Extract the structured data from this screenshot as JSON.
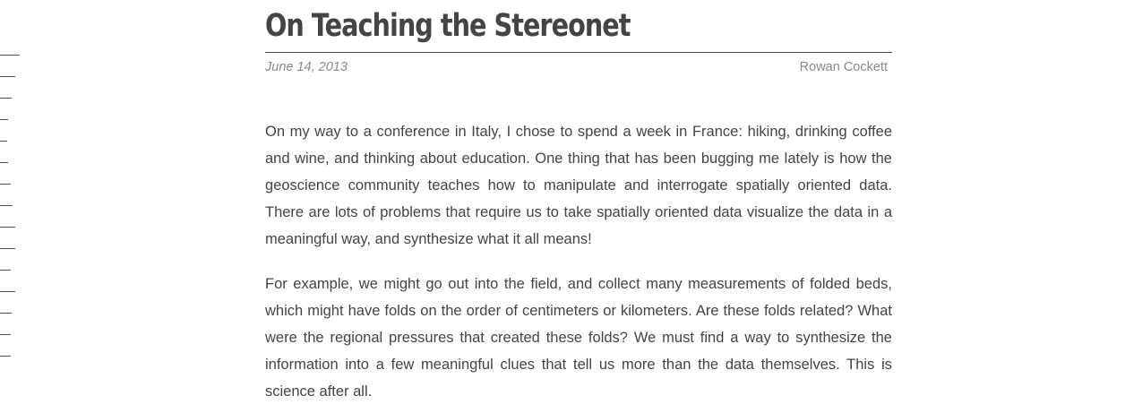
{
  "post": {
    "title": "On Teaching the Stereonet",
    "date": "June 14, 2013",
    "author": "Rowan Cockett",
    "paragraphs": [
      "On my way to a conference in Italy, I chose to spend a week in France: hiking, drinking coffee and wine, and thinking about education. One thing that has been bugging me lately is how the geoscience community teaches how to manipulate and interrogate spatially oriented data. There are lots of problems that require us to take spatially oriented data visualize the data in a meaningful way, and synthesize what it all means!",
      "For example, we might go out into the field, and collect many measurements of folded beds, which might have folds on the order of centimeters or kilometers. Are these folds related? What were the regional pressures that created these folds? We must find a way to synthesize the information into a few meaningful clues that tell us more than the data themselves. This is science after all."
    ]
  }
}
